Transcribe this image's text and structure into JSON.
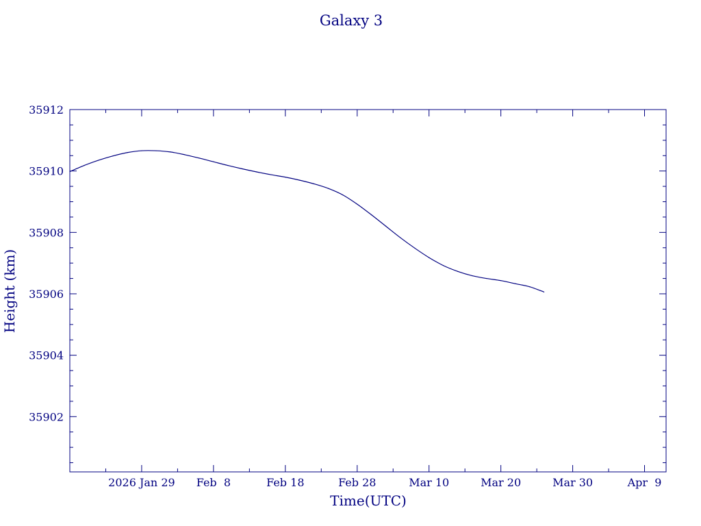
{
  "chart_data": {
    "type": "line",
    "title": "Galaxy 3",
    "xlabel": "Time(UTC)",
    "ylabel": "Height (km)",
    "color": "#000080",
    "grid": false,
    "legend": "none",
    "xlim": [
      "2026-01-19",
      "2026-04-12"
    ],
    "ylim": [
      35900.2,
      35912.0
    ],
    "x_ticks": [
      {
        "date": "2026-01-29",
        "label": "2026 Jan 29"
      },
      {
        "date": "2026-02-08",
        "label": "Feb  8"
      },
      {
        "date": "2026-02-18",
        "label": "Feb 18"
      },
      {
        "date": "2026-02-28",
        "label": "Feb 28"
      },
      {
        "date": "2026-03-10",
        "label": "Mar 10"
      },
      {
        "date": "2026-03-20",
        "label": "Mar 20"
      },
      {
        "date": "2026-03-30",
        "label": "Mar 30"
      },
      {
        "date": "2026-04-09",
        "label": "Apr  9"
      }
    ],
    "x_minor_ticks": [
      "2026-01-24",
      "2026-02-03",
      "2026-02-13",
      "2026-02-23",
      "2026-03-05",
      "2026-03-15",
      "2026-03-25",
      "2026-04-04"
    ],
    "y_ticks": [
      35902,
      35904,
      35906,
      35908,
      35910,
      35912
    ],
    "y_minor_step": 0.5,
    "series": [
      {
        "x": [
          "2026-01-19",
          "2026-01-21",
          "2026-01-23",
          "2026-01-25",
          "2026-01-27",
          "2026-01-29",
          "2026-01-31",
          "2026-02-02",
          "2026-02-04",
          "2026-02-06",
          "2026-02-08",
          "2026-02-10",
          "2026-02-12",
          "2026-02-14",
          "2026-02-16",
          "2026-02-18",
          "2026-02-20",
          "2026-02-22",
          "2026-02-24",
          "2026-02-26",
          "2026-02-28",
          "2026-03-02",
          "2026-03-04",
          "2026-03-06",
          "2026-03-08",
          "2026-03-10",
          "2026-03-12",
          "2026-03-14",
          "2026-03-16",
          "2026-03-18",
          "2026-03-20",
          "2026-03-22",
          "2026-03-24",
          "2026-03-26"
        ],
        "y": [
          35909.98,
          35910.18,
          35910.35,
          35910.49,
          35910.6,
          35910.66,
          35910.66,
          35910.62,
          35910.53,
          35910.42,
          35910.3,
          35910.18,
          35910.07,
          35909.97,
          35909.88,
          35909.8,
          35909.7,
          35909.58,
          35909.43,
          35909.22,
          35908.92,
          35908.57,
          35908.2,
          35907.83,
          35907.49,
          35907.18,
          35906.92,
          35906.73,
          35906.59,
          35906.5,
          35906.43,
          35906.33,
          35906.23,
          35906.06
        ]
      }
    ]
  }
}
